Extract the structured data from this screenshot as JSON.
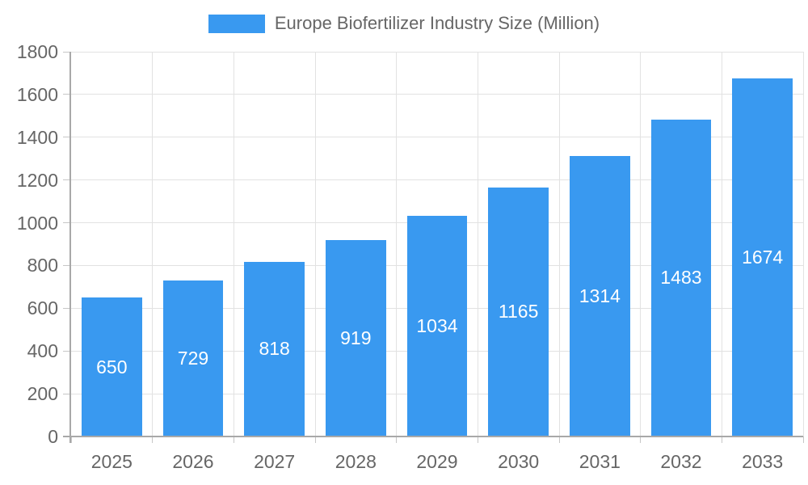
{
  "chart_data": {
    "type": "bar",
    "title": "Europe Biofertilizer Industry Size (Million)",
    "categories": [
      "2025",
      "2026",
      "2027",
      "2028",
      "2029",
      "2030",
      "2031",
      "2032",
      "2033"
    ],
    "values": [
      650,
      729,
      818,
      919,
      1034,
      1165,
      1314,
      1483,
      1674
    ],
    "series": [
      {
        "name": "Europe Biofertilizer Industry Size (Million)",
        "values": [
          650,
          729,
          818,
          919,
          1034,
          1165,
          1314,
          1483,
          1674
        ]
      }
    ],
    "xlabel": "",
    "ylabel": "",
    "ylim": [
      0,
      1800
    ],
    "ytick_step": 200,
    "yticks": [
      0,
      200,
      400,
      600,
      800,
      1000,
      1200,
      1400,
      1600,
      1800
    ],
    "grid": true,
    "legend_position": "top",
    "bar_labels_visible": true
  },
  "colors": {
    "bar": "#3999f0",
    "grid": "#e2e2e2",
    "axis": "#a8a8a8",
    "tick": "#c6c6c6",
    "text": "#666666",
    "bar_label": "#ffffff"
  }
}
